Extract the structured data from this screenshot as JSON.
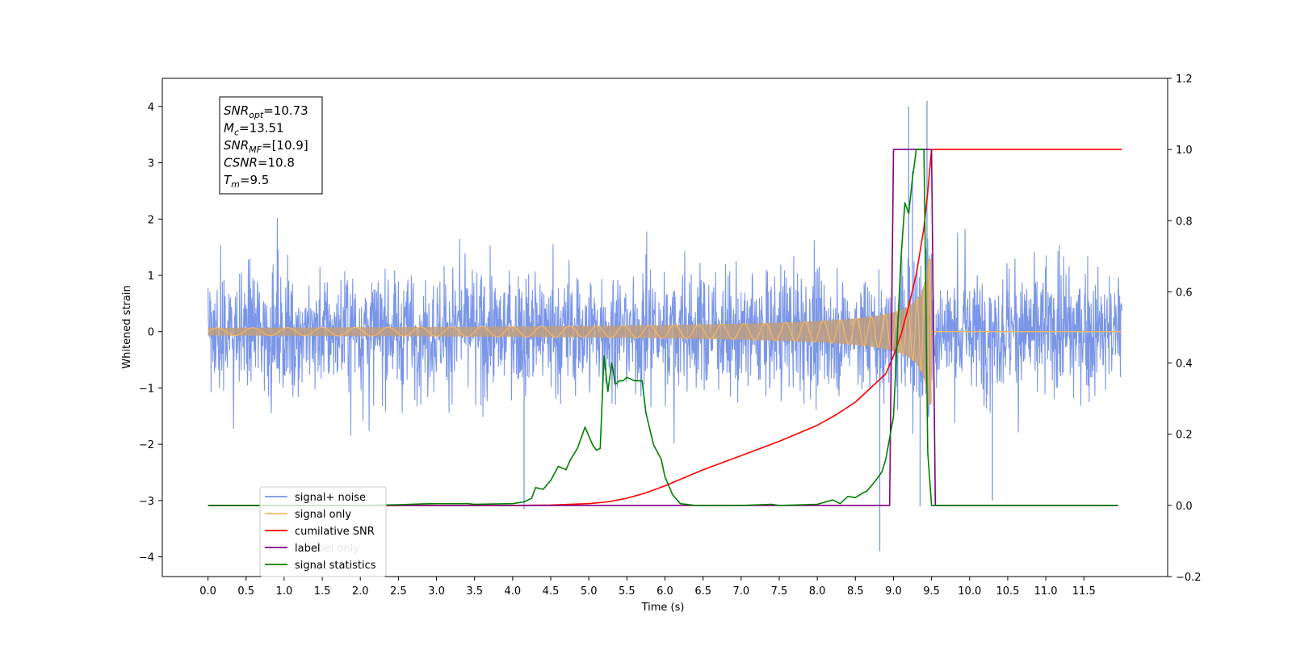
{
  "chart_data": {
    "type": "line",
    "xlabel": "Time (s)",
    "ylabel": "Whitened strain",
    "xlim": [
      -0.6,
      12.6
    ],
    "ylim": [
      -4.35,
      4.5
    ],
    "y2lim": [
      -0.2,
      1.2
    ],
    "x_ticks": [
      0.0,
      0.5,
      1.0,
      1.5,
      2.0,
      2.5,
      3.0,
      3.5,
      4.0,
      4.5,
      5.0,
      5.5,
      6.0,
      6.5,
      7.0,
      7.5,
      8.0,
      8.5,
      9.0,
      9.5,
      10.0,
      10.5,
      11.0,
      11.5
    ],
    "x_tick_labels": [
      "0.0",
      "0.5",
      "1.0",
      "1.5",
      "2.0",
      "2.5",
      "3.0",
      "3.5",
      "4.0",
      "4.5",
      "5.0",
      "5.5",
      "6.0",
      "6.5",
      "7.0",
      "7.5",
      "8.0",
      "8.5",
      "9.0",
      "9.5",
      "10.0",
      "10.5",
      "11.0",
      "11.5"
    ],
    "y_ticks": [
      -4,
      -3,
      -2,
      -1,
      0,
      1,
      2,
      3,
      4
    ],
    "y_tick_labels": [
      "−4",
      "−3",
      "−2",
      "−1",
      "0",
      "1",
      "2",
      "3",
      "4"
    ],
    "y2_ticks": [
      -0.2,
      0.0,
      0.2,
      0.4,
      0.6,
      0.8,
      1.0,
      1.2
    ],
    "y2_tick_labels": [
      "−0.2",
      "0.0",
      "0.2",
      "0.4",
      "0.6",
      "0.8",
      "1.0",
      "1.2"
    ],
    "noise": {
      "t_start": 0.0,
      "t_end": 12.0,
      "typical_low": -1.4,
      "typical_high": 1.4,
      "extreme_spikes": [
        {
          "t": 9.2,
          "y": 4.0
        },
        {
          "t": 9.44,
          "y": 4.1
        },
        {
          "t": 8.82,
          "y": -3.9
        },
        {
          "t": 4.15,
          "y": -3.15
        },
        {
          "t": 9.25,
          "y": 2.85
        },
        {
          "t": 9.35,
          "y": -3.1
        },
        {
          "t": 10.3,
          "y": -3.0
        }
      ]
    },
    "signal": {
      "t_start": 0.0,
      "t_merger": 9.5,
      "peak_amplitude": 1.3
    },
    "series": [
      {
        "name": "cumilative SNR",
        "axis": "right",
        "x": [
          0.0,
          4.0,
          4.5,
          5.0,
          5.25,
          5.5,
          5.75,
          6.0,
          6.5,
          7.0,
          7.5,
          8.0,
          8.25,
          8.5,
          8.75,
          8.9,
          9.0,
          9.1,
          9.2,
          9.3,
          9.4,
          9.45,
          9.5,
          12.0
        ],
        "y": [
          0.0,
          0.0,
          0.001,
          0.005,
          0.01,
          0.02,
          0.035,
          0.055,
          0.1,
          0.14,
          0.18,
          0.225,
          0.255,
          0.29,
          0.34,
          0.37,
          0.42,
          0.48,
          0.56,
          0.65,
          0.78,
          0.88,
          1.0,
          1.0
        ]
      },
      {
        "name": "label",
        "axis": "right",
        "x": [
          0.0,
          8.95,
          9.0,
          9.5,
          9.55,
          11.95
        ],
        "y": [
          0.0,
          0.0,
          1.0,
          1.0,
          0.0,
          0.0
        ]
      },
      {
        "name": "signal statistics",
        "axis": "right",
        "x": [
          0.0,
          1.0,
          2.0,
          2.5,
          2.8,
          3.0,
          3.4,
          3.5,
          4.0,
          4.15,
          4.25,
          4.3,
          4.4,
          4.5,
          4.6,
          4.7,
          4.75,
          4.85,
          4.95,
          5.05,
          5.1,
          5.15,
          5.2,
          5.25,
          5.3,
          5.35,
          5.4,
          5.45,
          5.5,
          5.6,
          5.7,
          5.75,
          5.85,
          5.95,
          6.0,
          6.1,
          6.2,
          6.4,
          7.0,
          7.4,
          7.5,
          8.0,
          8.2,
          8.3,
          8.4,
          8.5,
          8.6,
          8.65,
          8.75,
          8.85,
          8.9,
          9.0,
          9.1,
          9.15,
          9.2,
          9.25,
          9.3,
          9.35,
          9.4,
          9.45,
          9.5,
          9.55,
          11.95
        ],
        "y": [
          0.0,
          0.0,
          0.0,
          0.002,
          0.004,
          0.005,
          0.005,
          0.003,
          0.005,
          0.01,
          0.02,
          0.05,
          0.045,
          0.07,
          0.11,
          0.1,
          0.125,
          0.16,
          0.22,
          0.17,
          0.155,
          0.16,
          0.42,
          0.32,
          0.4,
          0.34,
          0.35,
          0.35,
          0.36,
          0.35,
          0.35,
          0.26,
          0.17,
          0.13,
          0.08,
          0.03,
          0.005,
          0.0,
          0.0,
          0.003,
          0.0,
          0.003,
          0.015,
          0.005,
          0.025,
          0.022,
          0.035,
          0.04,
          0.065,
          0.095,
          0.13,
          0.25,
          0.7,
          0.85,
          0.82,
          0.92,
          1.0,
          1.0,
          1.0,
          0.15,
          0.0,
          0.0,
          0.0
        ]
      }
    ],
    "legend": {
      "placement": "lower-left",
      "entries": [
        {
          "label": "signal+ noise",
          "color": "#7a96e8"
        },
        {
          "label": "signal only",
          "color": "#fdbb5f"
        },
        {
          "label": "cumilative SNR",
          "color": "#ff0000"
        },
        {
          "label": "label",
          "color": "#800080"
        },
        {
          "label": "signal statistics",
          "color": "#008000"
        }
      ]
    },
    "legend_occluded_labels": [
      "label only"
    ],
    "info_box": {
      "lines": [
        {
          "sym": "SNR",
          "sub": "opt",
          "value": "=10.73"
        },
        {
          "sym": "M",
          "sub": "c",
          "value": "=13.51"
        },
        {
          "sym": "SNR",
          "sub": "MF",
          "value": "=[10.9]"
        },
        {
          "sym": "CSNR",
          "sub": "",
          "value": "=10.8"
        },
        {
          "sym": "T",
          "sub": "m",
          "value": "=9.5"
        }
      ]
    },
    "colors": {
      "noise": "#7a96e8",
      "signal": "#fdbb5f",
      "signal_overlap": "#bf9f7f",
      "snr": "#ff0000",
      "label": "#800080",
      "statistics": "#008000"
    }
  }
}
